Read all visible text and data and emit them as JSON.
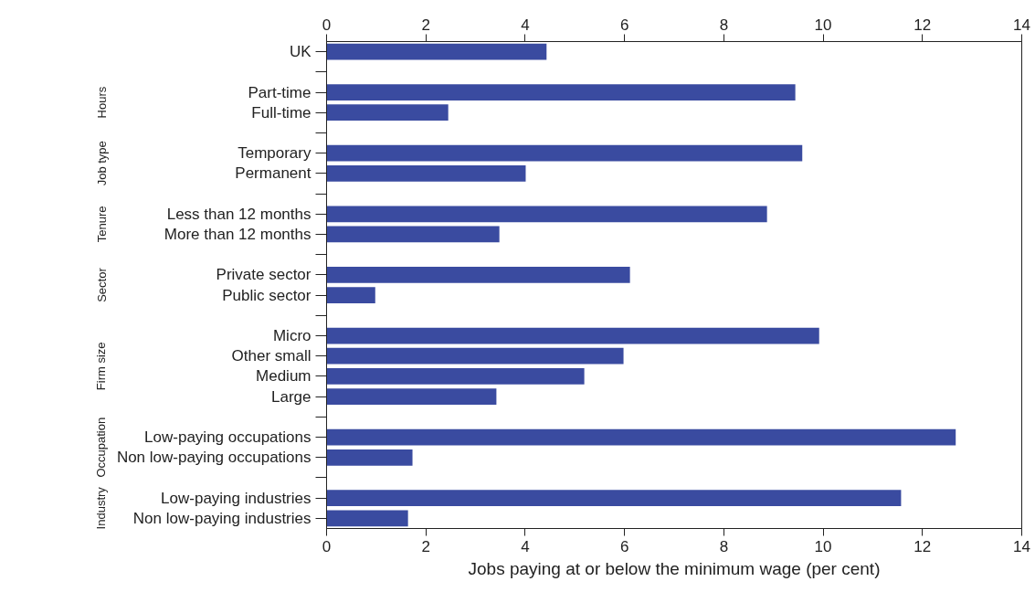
{
  "chart_data": {
    "type": "bar",
    "orientation": "horizontal",
    "xlabel": "Jobs paying at or below the minimum wage (per cent)",
    "categories": [
      "UK",
      null,
      "Part-time",
      "Full-time",
      null,
      "Temporary",
      "Permanent",
      null,
      "Less than 12 months",
      "More than 12 months",
      null,
      "Private sector",
      "Public sector",
      null,
      "Micro",
      "Other small",
      "Medium",
      "Large",
      null,
      "Low-paying occupations",
      "Non low-paying occupations",
      null,
      "Low-paying industries",
      "Non low-paying industries"
    ],
    "values": [
      4.43,
      null,
      9.44,
      2.45,
      null,
      9.58,
      4.01,
      null,
      8.87,
      3.48,
      null,
      6.11,
      0.98,
      null,
      9.92,
      5.98,
      5.19,
      3.42,
      null,
      12.67,
      1.73,
      null,
      11.57,
      1.64
    ],
    "color": "#3a4ba0",
    "xlim": [
      0,
      14
    ],
    "xticks": [
      0,
      2,
      4,
      6,
      8,
      10,
      12,
      14
    ],
    "x2lim": [
      0,
      14
    ],
    "x2ticks": [
      0,
      2,
      4,
      6,
      8,
      10,
      12,
      14
    ],
    "annotations": [
      "Hours",
      "Job type",
      "Tenure",
      "Sector",
      "Firm size",
      "Occupation",
      "Industry"
    ]
  }
}
